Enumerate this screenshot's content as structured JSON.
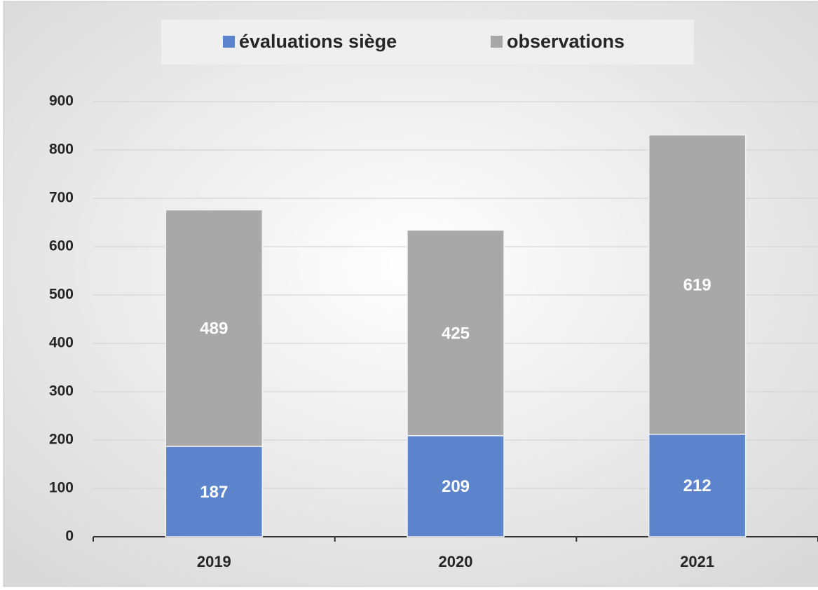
{
  "chart_data": {
    "type": "stacked_bar",
    "categories": [
      "2019",
      "2020",
      "2021"
    ],
    "series": [
      {
        "name": "évaluations siège",
        "color": "#5b84cc",
        "values": [
          187,
          209,
          212
        ]
      },
      {
        "name": "observations",
        "color": "#a8a8a8",
        "values": [
          489,
          425,
          619
        ]
      }
    ],
    "ylim": [
      0,
      900
    ],
    "yticks": [
      0,
      100,
      200,
      300,
      400,
      500,
      600,
      700,
      800,
      900
    ],
    "grid": true,
    "legend": "top"
  }
}
